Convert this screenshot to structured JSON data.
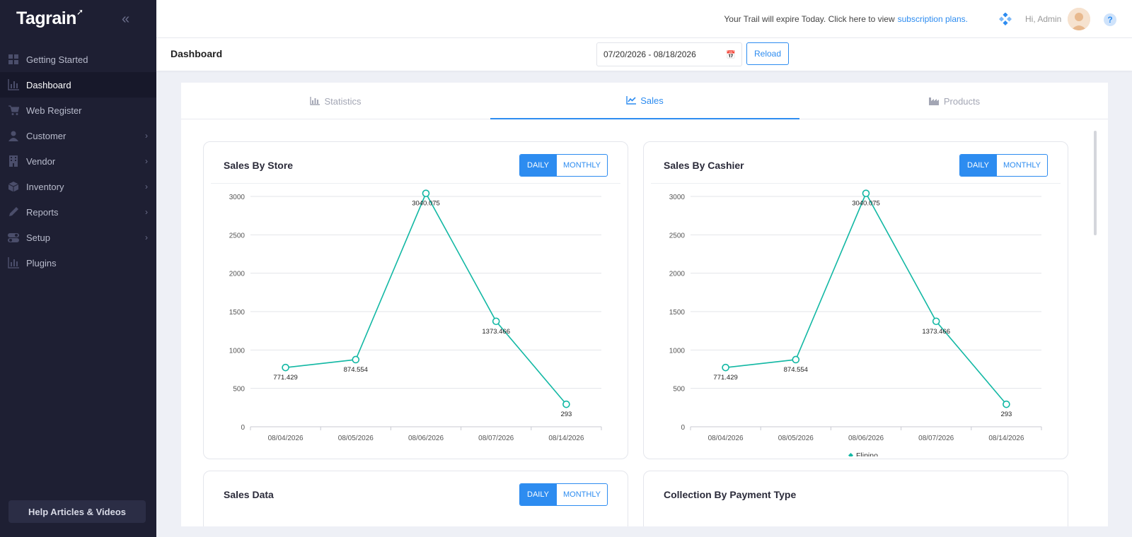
{
  "app": {
    "logo": "Tagrain",
    "collapse_icon": "double-chevron-left-icon"
  },
  "sidebar": {
    "items": [
      {
        "label": "Getting Started",
        "icon": "grid-icon",
        "active": false,
        "submenu": false
      },
      {
        "label": "Dashboard",
        "icon": "bar-chart-icon",
        "active": true,
        "submenu": false
      },
      {
        "label": "Web Register",
        "icon": "cart-icon",
        "active": false,
        "submenu": false
      },
      {
        "label": "Customer",
        "icon": "user-icon",
        "active": false,
        "submenu": true
      },
      {
        "label": "Vendor",
        "icon": "building-icon",
        "active": false,
        "submenu": true
      },
      {
        "label": "Inventory",
        "icon": "box-icon",
        "active": false,
        "submenu": true
      },
      {
        "label": "Reports",
        "icon": "pencil-icon",
        "active": false,
        "submenu": true
      },
      {
        "label": "Setup",
        "icon": "toggle-icon",
        "active": false,
        "submenu": true
      },
      {
        "label": "Plugins",
        "icon": "bar-chart-icon",
        "active": false,
        "submenu": false
      }
    ],
    "help_button": "Help Articles & Videos"
  },
  "topbar": {
    "trial_text": "Your Trail will expire Today. Click here to view",
    "trial_link": "subscription plans.",
    "greeting": "Hi, Admin",
    "help_glyph": "?"
  },
  "header": {
    "title": "Dashboard",
    "date_range": "07/20/2026 - 08/18/2026",
    "reload_label": "Reload"
  },
  "tabs": [
    {
      "label": "Statistics",
      "icon": "bar-chart-icon",
      "active": false
    },
    {
      "label": "Sales",
      "icon": "line-chart-icon",
      "active": true
    },
    {
      "label": "Products",
      "icon": "factory-icon",
      "active": false
    }
  ],
  "toggle": {
    "daily": "DAILY",
    "monthly": "MONTHLY"
  },
  "cards": {
    "store_title": "Sales By Store",
    "cashier_title": "Sales By Cashier",
    "sales_data_title": "Sales Data",
    "payment_title": "Collection By Payment Type"
  },
  "colors": {
    "accent": "#2d8cf0",
    "series": "#13b8a4",
    "sidebar_bg": "#1e1f33"
  },
  "chart_data": [
    {
      "type": "line",
      "title": "Sales By Store",
      "categories": [
        "08/04/2026",
        "08/05/2026",
        "08/06/2026",
        "08/07/2026",
        "08/14/2026"
      ],
      "series": [
        {
          "values": [
            771.429,
            874.554,
            3040.075,
            1373.466,
            293
          ]
        }
      ],
      "data_labels": [
        "771.429",
        "874.554",
        "3040.075",
        "1373.466",
        "293"
      ],
      "yticks": [
        0,
        500,
        1000,
        1500,
        2000,
        2500,
        3000
      ],
      "ylim": [
        0,
        3000
      ],
      "grid": true,
      "legend": "none"
    },
    {
      "type": "line",
      "title": "Sales By Cashier",
      "categories": [
        "08/04/2026",
        "08/05/2026",
        "08/06/2026",
        "08/07/2026",
        "08/14/2026"
      ],
      "series": [
        {
          "name": "Flipino",
          "values": [
            771.429,
            874.554,
            3040.075,
            1373.466,
            293
          ]
        }
      ],
      "data_labels": [
        "771.429",
        "874.554",
        "3040.075",
        "1373.466",
        "293"
      ],
      "yticks": [
        0,
        500,
        1000,
        1500,
        2000,
        2500,
        3000
      ],
      "ylim": [
        0,
        3000
      ],
      "grid": true,
      "legend": "bottom"
    }
  ]
}
